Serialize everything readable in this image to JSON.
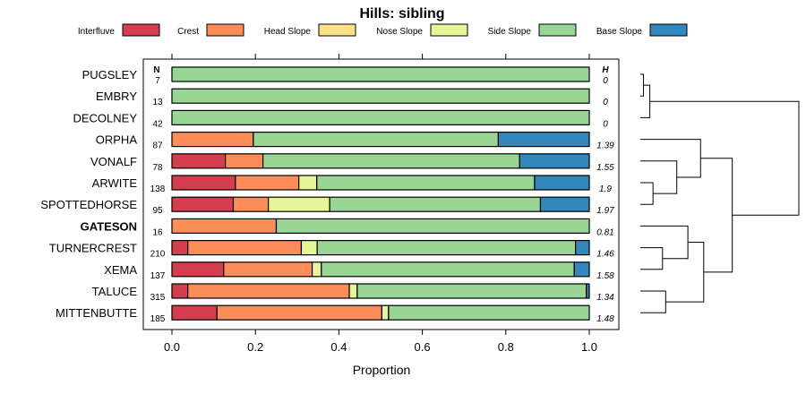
{
  "chart_data": {
    "type": "stacked-bar-horizontal",
    "title": "Hills: sibling",
    "xlabel": "Proportion",
    "xlim": [
      0,
      1
    ],
    "x_ticks": [
      "0.0",
      "0.2",
      "0.4",
      "0.6",
      "0.8",
      "1.0"
    ],
    "col_header_n": "N",
    "col_header_h": "H",
    "highlight": "GATESON",
    "legend": [
      {
        "name": "Interfluve",
        "color": "#d53e4f"
      },
      {
        "name": "Crest",
        "color": "#fc8d59"
      },
      {
        "name": "Head Slope",
        "color": "#fee08b"
      },
      {
        "name": "Nose Slope",
        "color": "#e6f598"
      },
      {
        "name": "Side Slope",
        "color": "#99d594"
      },
      {
        "name": "Base Slope",
        "color": "#3288bd"
      }
    ],
    "rows": [
      {
        "name": "PUGSLEY",
        "n": "7",
        "h": "0",
        "values": [
          0,
          0,
          0,
          0,
          1.0,
          0
        ]
      },
      {
        "name": "EMBRY",
        "n": "13",
        "h": "0",
        "values": [
          0,
          0,
          0,
          0,
          1.0,
          0
        ]
      },
      {
        "name": "DECOLNEY",
        "n": "42",
        "h": "0",
        "values": [
          0,
          0,
          0,
          0,
          1.0,
          0
        ]
      },
      {
        "name": "ORPHA",
        "n": "87",
        "h": "1.39",
        "values": [
          0,
          0.195,
          0,
          0,
          0.587,
          0.218
        ]
      },
      {
        "name": "VONALF",
        "n": "78",
        "h": "1.55",
        "values": [
          0.128,
          0.09,
          0,
          0,
          0.615,
          0.167
        ]
      },
      {
        "name": "ARWITE",
        "n": "138",
        "h": "1.9",
        "values": [
          0.152,
          0.152,
          0,
          0.043,
          0.522,
          0.131
        ]
      },
      {
        "name": "SPOTTEDHORSE",
        "n": "95",
        "h": "1.97",
        "values": [
          0.147,
          0.084,
          0,
          0.147,
          0.505,
          0.117
        ]
      },
      {
        "name": "GATESON",
        "n": "16",
        "h": "0.81",
        "values": [
          0,
          0.25,
          0,
          0,
          0.75,
          0
        ]
      },
      {
        "name": "TURNERCREST",
        "n": "210",
        "h": "1.46",
        "values": [
          0.038,
          0.272,
          0,
          0.038,
          0.619,
          0.033
        ]
      },
      {
        "name": "XEMA",
        "n": "137",
        "h": "1.58",
        "values": [
          0.124,
          0.212,
          0,
          0.022,
          0.606,
          0.036
        ]
      },
      {
        "name": "TALUCE",
        "n": "315",
        "h": "1.34",
        "values": [
          0.038,
          0.387,
          0,
          0.019,
          0.549,
          0.007
        ]
      },
      {
        "name": "MITTENBUTTE",
        "n": "185",
        "h": "1.48",
        "values": [
          0.108,
          0.395,
          0,
          0.016,
          0.481,
          0
        ]
      }
    ],
    "dendrogram": {
      "merges": [
        {
          "a": "L:PUGSLEY",
          "b": "L:EMBRY",
          "height": 0.02
        },
        {
          "a": "M:0",
          "b": "L:DECOLNEY",
          "height": 0.06
        },
        {
          "a": "L:ARWITE",
          "b": "L:SPOTTEDHORSE",
          "height": 0.08
        },
        {
          "a": "L:VONALF",
          "b": "M:2",
          "height": 0.23
        },
        {
          "a": "L:ORPHA",
          "b": "M:3",
          "height": 0.38
        },
        {
          "a": "L:TURNERCREST",
          "b": "L:XEMA",
          "height": 0.14
        },
        {
          "a": "L:GATESON",
          "b": "M:5",
          "height": 0.3
        },
        {
          "a": "L:TALUCE",
          "b": "L:MITTENBUTTE",
          "height": 0.16
        },
        {
          "a": "M:6",
          "b": "M:7",
          "height": 0.4
        },
        {
          "a": "M:4",
          "b": "M:8",
          "height": 0.58
        },
        {
          "a": "M:1",
          "b": "M:9",
          "height": 1.0
        }
      ]
    }
  }
}
